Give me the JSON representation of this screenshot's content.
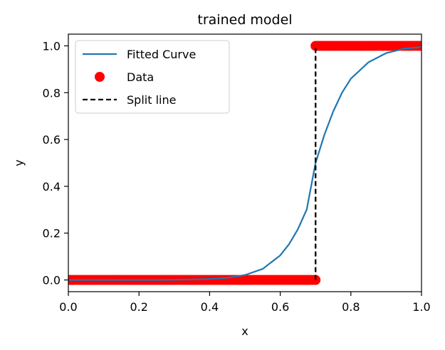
{
  "chart_data": {
    "type": "line",
    "title": "trained model",
    "xlabel": "x",
    "ylabel": "y",
    "xlim": [
      0.0,
      1.0
    ],
    "ylim": [
      -0.05,
      1.05
    ],
    "x_ticks": [
      0.0,
      0.2,
      0.4,
      0.6,
      0.8,
      1.0
    ],
    "y_ticks": [
      0.0,
      0.2,
      0.4,
      0.6,
      0.8,
      1.0
    ],
    "x_tick_labels": [
      "0.0",
      "0.2",
      "0.4",
      "0.6",
      "0.8",
      "1.0"
    ],
    "y_tick_labels": [
      "0.0",
      "0.2",
      "0.4",
      "0.6",
      "0.8",
      "1.0"
    ],
    "grid": false,
    "legend": {
      "position": "top-left",
      "entries": [
        "Fitted Curve",
        "Data",
        "Split line"
      ]
    },
    "series": [
      {
        "name": "Fitted Curve",
        "kind": "line",
        "color": "#1f77b4",
        "x": [
          0.0,
          0.05,
          0.1,
          0.15,
          0.2,
          0.25,
          0.3,
          0.35,
          0.4,
          0.45,
          0.5,
          0.55,
          0.6,
          0.625,
          0.65,
          0.675,
          0.7,
          0.725,
          0.75,
          0.775,
          0.8,
          0.85,
          0.9,
          0.95,
          1.0
        ],
        "y": [
          0.0,
          0.0,
          0.0,
          0.0,
          0.0,
          0.0,
          0.001,
          0.002,
          0.004,
          0.009,
          0.021,
          0.047,
          0.105,
          0.153,
          0.217,
          0.301,
          0.5,
          0.62,
          0.72,
          0.8,
          0.86,
          0.93,
          0.969,
          0.988,
          0.995
        ]
      },
      {
        "name": "Data",
        "kind": "scatter",
        "color": "#ff0000",
        "segments": [
          {
            "x_from": 0.0,
            "x_to": 0.7,
            "y": 0.0
          },
          {
            "x_from": 0.7,
            "x_to": 1.0,
            "y": 1.0
          }
        ]
      },
      {
        "name": "Split line",
        "kind": "line",
        "style": "dashed",
        "color": "#000000",
        "x": [
          0.7,
          0.7
        ],
        "y": [
          0.0,
          1.0
        ]
      }
    ]
  }
}
